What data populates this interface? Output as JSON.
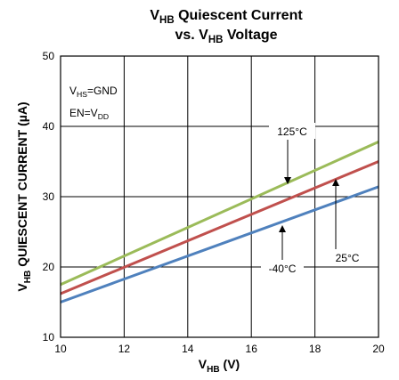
{
  "chart_data": {
    "type": "line",
    "title": {
      "line1_pre": "V",
      "line1_sub": "HB",
      "line1_post": " Quiescent Current",
      "line2_pre": "vs. V",
      "line2_sub": "HB",
      "line2_post": " Voltage"
    },
    "xlabel": {
      "pre": "V",
      "sub": "HB",
      "post": " (V)"
    },
    "ylabel": {
      "pre": "V",
      "sub": "HB",
      "post": " QUIESCENT CURRENT (µA)"
    },
    "xlim": [
      10,
      20
    ],
    "ylim": [
      10,
      50
    ],
    "xticks": [
      "10",
      "12",
      "14",
      "16",
      "18",
      "20"
    ],
    "yticks": [
      "10",
      "20",
      "30",
      "40",
      "50"
    ],
    "grid": true,
    "conditions": [
      {
        "pre": "V",
        "sub": "HS",
        "post": "=GND"
      },
      {
        "pre": "EN=V",
        "sub": "DD",
        "post": ""
      }
    ],
    "series": [
      {
        "name": "125°C",
        "color": "#9BBB59",
        "x": [
          10,
          20
        ],
        "y": [
          17.5,
          37.8
        ]
      },
      {
        "name": "25°C",
        "color": "#C0504D",
        "x": [
          10,
          20
        ],
        "y": [
          16.2,
          35.0
        ]
      },
      {
        "name": "-40°C",
        "color": "#4F81BD",
        "x": [
          10,
          20
        ],
        "y": [
          15.0,
          31.4
        ]
      }
    ]
  }
}
